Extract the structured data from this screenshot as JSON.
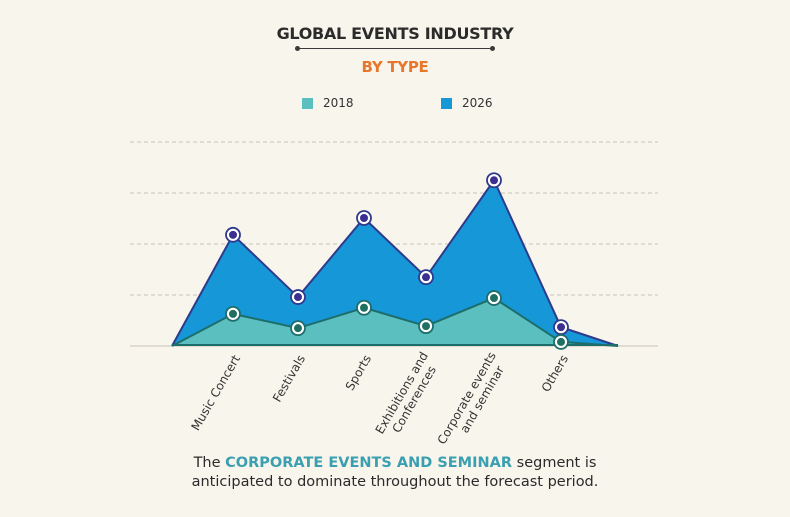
{
  "chart_data": {
    "type": "area",
    "title": "GLOBAL EVENTS INDUSTRY",
    "subtitle": "BY TYPE",
    "categories": [
      "Music Concert",
      "Festivals",
      "Sports",
      "Exhibitions and Conferences",
      "Corporate events and seminar",
      "Others"
    ],
    "category_lines": [
      [
        "Music Concert"
      ],
      [
        "Festivals"
      ],
      [
        "Sports"
      ],
      [
        "Exhibitions and",
        "Conferences"
      ],
      [
        "Corporate events",
        "and seminar"
      ],
      [
        "Others"
      ]
    ],
    "series": [
      {
        "name": "2026",
        "color": "#1597d8",
        "line_color": "#2e3a8c",
        "marker_color": "#3b2f8f",
        "values": [
          2.18,
          0.96,
          2.51,
          1.35,
          3.25,
          0.37
        ]
      },
      {
        "name": "2018",
        "color": "#5bbfbf",
        "line_color": "#1d6e6a",
        "marker_color": "#1f6f63",
        "values": [
          0.63,
          0.35,
          0.75,
          0.39,
          0.94,
          0.08
        ]
      }
    ],
    "ylim": [
      0,
      4
    ],
    "y_unit": "relative (no axis values shown)",
    "xlabel": "",
    "ylabel": "",
    "grid": true,
    "legend_position": "top-center"
  },
  "legend": [
    {
      "label": "2018",
      "color": "#5bbfbf"
    },
    {
      "label": "2026",
      "color": "#1597d8"
    }
  ],
  "caption": {
    "prefix": "The ",
    "highlight": "CORPORATE EVENTS AND SEMINAR",
    "suffix": " segment is",
    "line2": "anticipated to dominate throughout the forecast period."
  }
}
